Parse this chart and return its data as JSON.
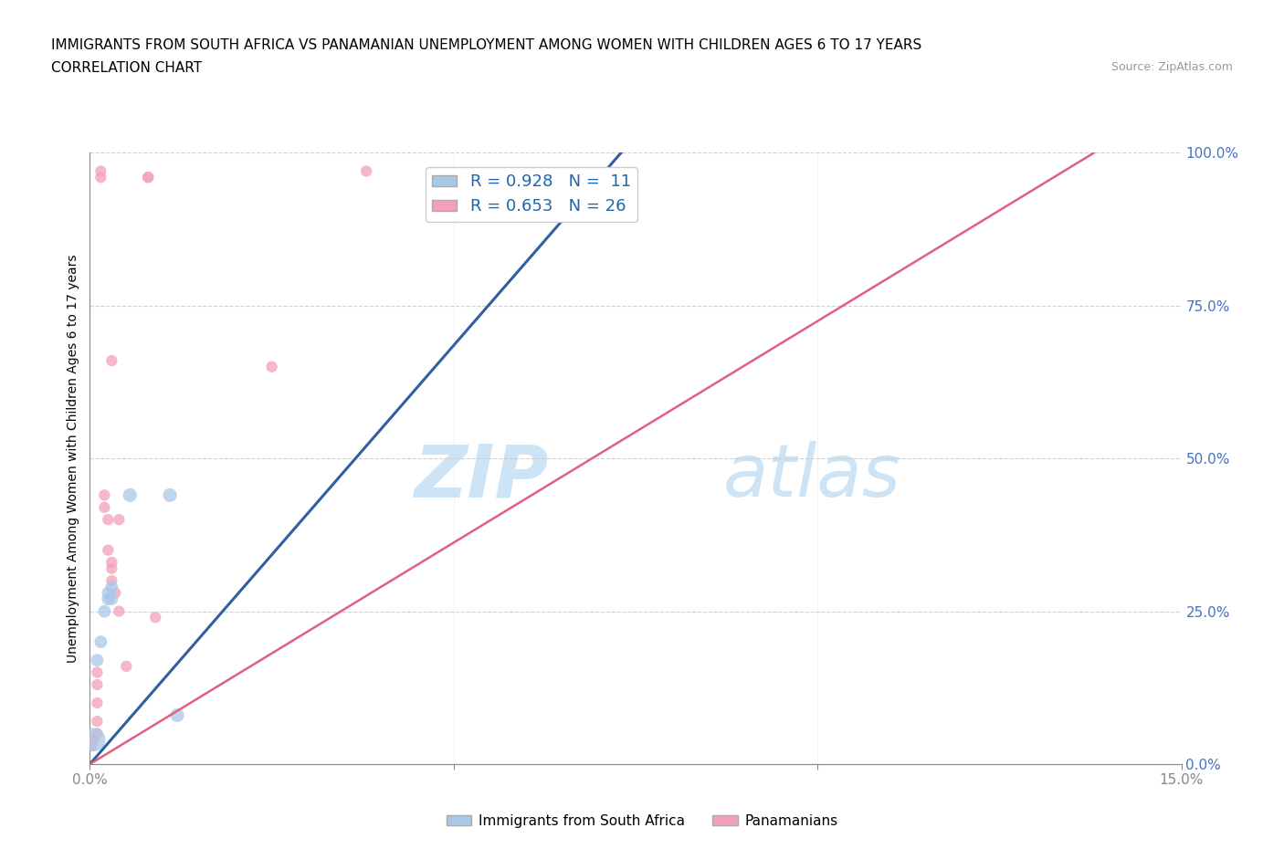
{
  "title_line1": "IMMIGRANTS FROM SOUTH AFRICA VS PANAMANIAN UNEMPLOYMENT AMONG WOMEN WITH CHILDREN AGES 6 TO 17 YEARS",
  "title_line2": "CORRELATION CHART",
  "source": "Source: ZipAtlas.com",
  "ylabel": "Unemployment Among Women with Children Ages 6 to 17 years",
  "xlim": [
    0.0,
    0.15
  ],
  "ylim": [
    0.0,
    1.0
  ],
  "xticks": [
    0.0,
    0.05,
    0.1,
    0.15
  ],
  "xtick_labels": [
    "0.0%",
    "",
    "",
    "15.0%"
  ],
  "ytick_labels": [
    "0.0%",
    "25.0%",
    "50.0%",
    "75.0%",
    "100.0%"
  ],
  "yticks": [
    0.0,
    0.25,
    0.5,
    0.75,
    1.0
  ],
  "watermark_ZIP": "ZIP",
  "watermark_atlas": "atlas",
  "legend_R1": "R = 0.928",
  "legend_N1": "N =  11",
  "legend_R2": "R = 0.653",
  "legend_N2": "N = 26",
  "blue_color": "#a8c8e8",
  "pink_color": "#f4a0b8",
  "blue_line_color": "#3060a0",
  "pink_line_color": "#e06080",
  "blue_scatter": [
    [
      0.0005,
      0.04
    ],
    [
      0.001,
      0.17
    ],
    [
      0.0015,
      0.2
    ],
    [
      0.002,
      0.25
    ],
    [
      0.0025,
      0.27
    ],
    [
      0.0025,
      0.28
    ],
    [
      0.003,
      0.27
    ],
    [
      0.003,
      0.29
    ],
    [
      0.0055,
      0.44
    ],
    [
      0.011,
      0.44
    ],
    [
      0.012,
      0.08
    ]
  ],
  "pink_scatter": [
    [
      0.0003,
      0.03
    ],
    [
      0.0005,
      0.04
    ],
    [
      0.001,
      0.05
    ],
    [
      0.001,
      0.07
    ],
    [
      0.001,
      0.1
    ],
    [
      0.001,
      0.13
    ],
    [
      0.001,
      0.15
    ],
    [
      0.0015,
      0.96
    ],
    [
      0.0015,
      0.97
    ],
    [
      0.002,
      0.44
    ],
    [
      0.002,
      0.42
    ],
    [
      0.0025,
      0.4
    ],
    [
      0.0025,
      0.35
    ],
    [
      0.003,
      0.66
    ],
    [
      0.003,
      0.33
    ],
    [
      0.003,
      0.32
    ],
    [
      0.003,
      0.3
    ],
    [
      0.0035,
      0.28
    ],
    [
      0.004,
      0.4
    ],
    [
      0.004,
      0.25
    ],
    [
      0.005,
      0.16
    ],
    [
      0.008,
      0.96
    ],
    [
      0.008,
      0.96
    ],
    [
      0.009,
      0.24
    ],
    [
      0.025,
      0.65
    ],
    [
      0.038,
      0.97
    ]
  ],
  "blue_sizes": [
    350,
    100,
    100,
    100,
    100,
    100,
    100,
    100,
    120,
    120,
    120
  ],
  "pink_sizes": [
    80,
    80,
    80,
    80,
    80,
    80,
    80,
    80,
    80,
    80,
    80,
    80,
    80,
    80,
    80,
    80,
    80,
    80,
    80,
    80,
    80,
    80,
    80,
    80,
    80,
    80
  ],
  "blue_line_x": [
    0.0,
    0.073
  ],
  "blue_line_y": [
    0.0,
    1.0
  ],
  "pink_line_x": [
    0.0,
    0.138
  ],
  "pink_line_y": [
    0.0,
    1.0
  ]
}
